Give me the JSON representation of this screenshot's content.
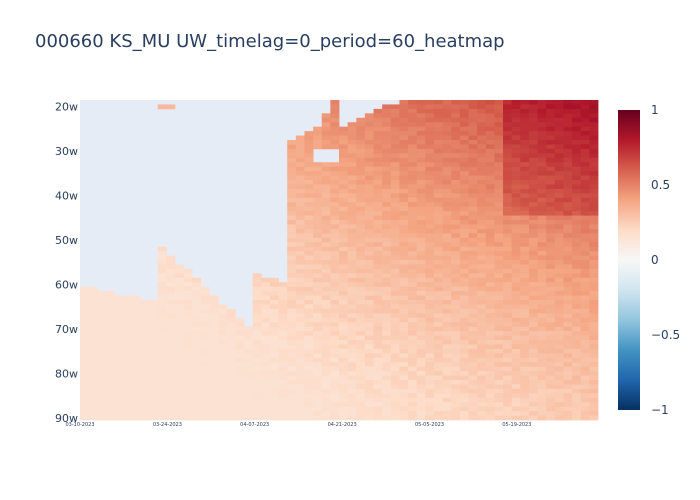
{
  "title": "000660 KS_MU UW_timelag=0_period=60_heatmap",
  "chart_data": {
    "type": "heatmap",
    "title": "000660 KS_MU UW_timelag=0_period=60_heatmap",
    "x_start_date": "2023-03-10",
    "x_end_date": "2023-06-01",
    "x_tick_labels": [
      "03-10-2023",
      "03-24-2023",
      "04-07-2023",
      "04-21-2023",
      "05-05-2023",
      "05-19-2023"
    ],
    "y_categories_range": [
      "19w",
      "90w"
    ],
    "y_tick_labels": [
      "20w",
      "30w",
      "40w",
      "50w",
      "60w",
      "70w",
      "80w",
      "90w"
    ],
    "colorscale": "RdBu (reversed)",
    "zmin": -1,
    "zmax": 1,
    "colorbar_ticks": [
      "1",
      "0.5",
      "0",
      "−0.5",
      "−1"
    ],
    "plot_background": "#e5ecf6",
    "observed_value_range": [
      0.15,
      0.85
    ],
    "missing_region": "upper-left (short windows, early dates) has no values"
  }
}
